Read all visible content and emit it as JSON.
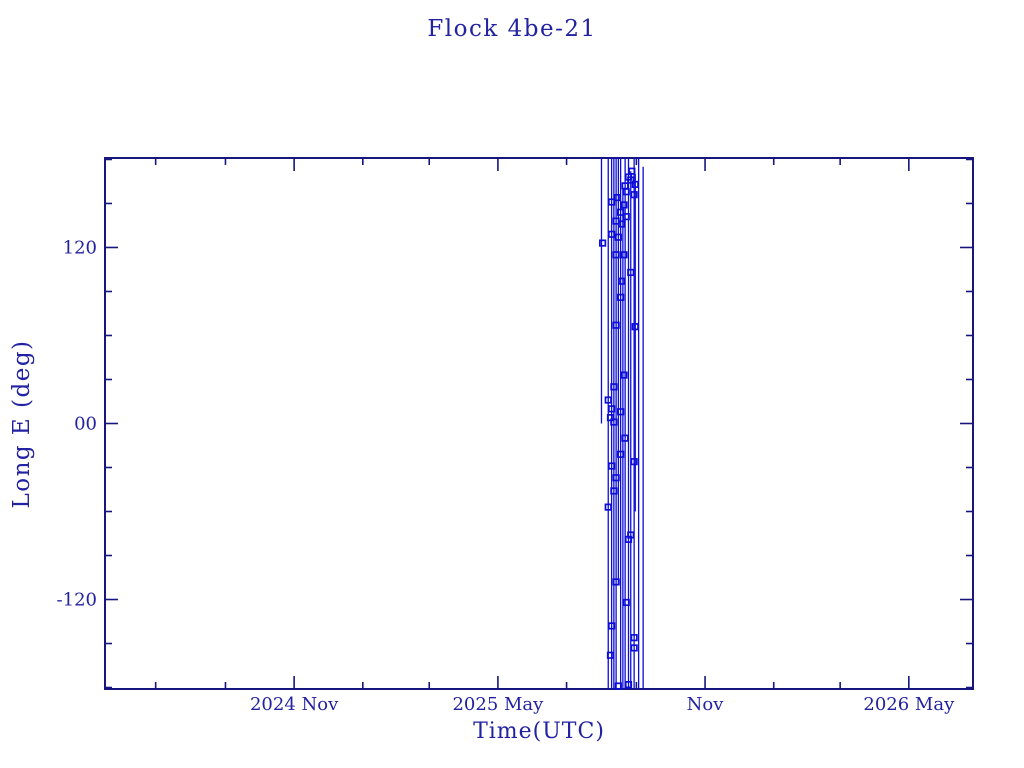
{
  "colors": {
    "background": "#ffffff",
    "axis": "#16167e",
    "text": "#2222a2",
    "data": "#0d0dd8"
  },
  "chart_data": {
    "type": "line",
    "title": "Flock 4be-21",
    "xlabel": "Time(UTC)",
    "ylabel": "Long E (deg)",
    "x_domain": [
      "2024-05-17",
      "2026-06-27"
    ],
    "ylim": [
      -181,
      181
    ],
    "grid": false,
    "legend": null,
    "marker": "open-square",
    "x_major_ticks": [
      {
        "date": "2024-11-01",
        "label": "2024 Nov"
      },
      {
        "date": "2025-05-01",
        "label": "2025 May"
      },
      {
        "date": "2025-11-01",
        "label": "Nov"
      },
      {
        "date": "2026-05-01",
        "label": "2026 May"
      }
    ],
    "x_minor_ticks": [
      "2024-07-01",
      "2024-09-01",
      "2025-01-01",
      "2025-03-01",
      "2025-07-01",
      "2025-09-01",
      "2026-01-01",
      "2026-03-01"
    ],
    "y_major_ticks": [
      {
        "value": 120,
        "label": "120"
      },
      {
        "value": 0,
        "label": "00"
      },
      {
        "value": -120,
        "label": "-120"
      }
    ],
    "y_minor_ticks": [
      180,
      150,
      90,
      60,
      30,
      -30,
      -60,
      -90,
      -150,
      -180
    ],
    "wrap_lines": [
      {
        "date": "2025-08-01",
        "y1": 181,
        "y2": 0
      },
      {
        "date": "2025-08-07",
        "y1": 181,
        "y2": -181
      },
      {
        "date": "2025-08-10",
        "y1": 181,
        "y2": -181
      },
      {
        "date": "2025-08-12",
        "y1": 181,
        "y2": -181
      },
      {
        "date": "2025-08-14",
        "y1": 181,
        "y2": -181
      },
      {
        "date": "2025-08-16",
        "y1": 181,
        "y2": -110
      },
      {
        "date": "2025-08-18",
        "y1": 181,
        "y2": -181
      },
      {
        "date": "2025-08-20",
        "y1": 160,
        "y2": -181
      },
      {
        "date": "2025-08-22",
        "y1": 181,
        "y2": -181
      },
      {
        "date": "2025-08-25",
        "y1": 181,
        "y2": -181
      },
      {
        "date": "2025-08-27",
        "y1": 172,
        "y2": -181
      },
      {
        "date": "2025-08-30",
        "y1": 181,
        "y2": -181
      },
      {
        "date": "2025-08-31",
        "y1": 170,
        "y2": -60
      },
      {
        "date": "2025-09-03",
        "y1": 181,
        "y2": -181
      },
      {
        "date": "2025-09-07",
        "y1": 175,
        "y2": -181
      }
    ],
    "points": [
      {
        "date": "2025-08-28",
        "lon": 172
      },
      {
        "date": "2025-08-25",
        "lon": 168
      },
      {
        "date": "2025-08-27",
        "lon": 166
      },
      {
        "date": "2025-08-31",
        "lon": 163
      },
      {
        "date": "2025-08-22",
        "lon": 162
      },
      {
        "date": "2025-08-23",
        "lon": 158
      },
      {
        "date": "2025-08-30",
        "lon": 156
      },
      {
        "date": "2025-08-15",
        "lon": 154
      },
      {
        "date": "2025-08-10",
        "lon": 151
      },
      {
        "date": "2025-08-21",
        "lon": 149
      },
      {
        "date": "2025-08-18",
        "lon": 144
      },
      {
        "date": "2025-08-23",
        "lon": 141
      },
      {
        "date": "2025-08-14",
        "lon": 138
      },
      {
        "date": "2025-08-19",
        "lon": 136
      },
      {
        "date": "2025-08-10",
        "lon": 129
      },
      {
        "date": "2025-08-16",
        "lon": 127
      },
      {
        "date": "2025-08-02",
        "lon": 123
      },
      {
        "date": "2025-08-14",
        "lon": 115
      },
      {
        "date": "2025-08-21",
        "lon": 115
      },
      {
        "date": "2025-08-27",
        "lon": 103
      },
      {
        "date": "2025-08-19",
        "lon": 97
      },
      {
        "date": "2025-08-18",
        "lon": 86
      },
      {
        "date": "2025-08-14",
        "lon": 67
      },
      {
        "date": "2025-08-31",
        "lon": 66
      },
      {
        "date": "2025-08-21",
        "lon": 33
      },
      {
        "date": "2025-08-12",
        "lon": 25
      },
      {
        "date": "2025-08-07",
        "lon": 16
      },
      {
        "date": "2025-08-10",
        "lon": 10
      },
      {
        "date": "2025-08-18",
        "lon": 8
      },
      {
        "date": "2025-08-09",
        "lon": 4
      },
      {
        "date": "2025-08-12",
        "lon": 1
      },
      {
        "date": "2025-08-22",
        "lon": -10
      },
      {
        "date": "2025-08-18",
        "lon": -21
      },
      {
        "date": "2025-08-30",
        "lon": -26
      },
      {
        "date": "2025-08-10",
        "lon": -29
      },
      {
        "date": "2025-08-14",
        "lon": -37
      },
      {
        "date": "2025-08-12",
        "lon": -46
      },
      {
        "date": "2025-08-07",
        "lon": -57
      },
      {
        "date": "2025-08-27",
        "lon": -76
      },
      {
        "date": "2025-08-25",
        "lon": -79
      },
      {
        "date": "2025-08-14",
        "lon": -108
      },
      {
        "date": "2025-08-23",
        "lon": -122
      },
      {
        "date": "2025-08-10",
        "lon": -138
      },
      {
        "date": "2025-08-30",
        "lon": -146
      },
      {
        "date": "2025-08-30",
        "lon": -153
      },
      {
        "date": "2025-08-09",
        "lon": -158
      },
      {
        "date": "2025-08-25",
        "lon": -178
      },
      {
        "date": "2025-08-16",
        "lon": -179
      }
    ]
  }
}
